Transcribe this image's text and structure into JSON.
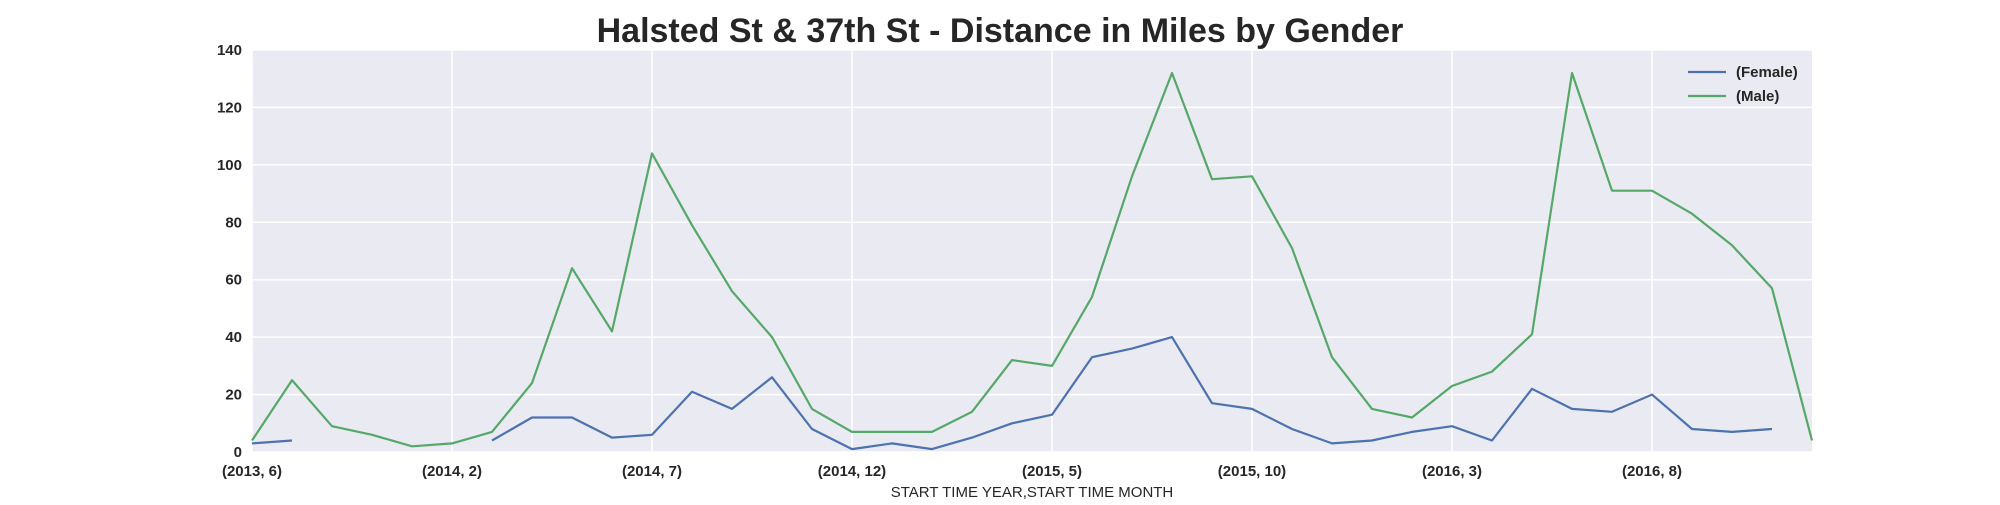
{
  "chart_data": {
    "type": "line",
    "title": "Halsted St & 37th St - Distance in Miles by Gender",
    "xlabel": "START TIME YEAR,START TIME MONTH",
    "ylabel": "",
    "ylim": [
      0,
      140
    ],
    "yticks": [
      0,
      20,
      40,
      60,
      80,
      100,
      120,
      140
    ],
    "xticks": [
      "(2013, 6)",
      "(2014, 2)",
      "(2014, 7)",
      "(2014, 12)",
      "(2015, 5)",
      "(2015, 10)",
      "(2016, 3)",
      "(2016, 8)"
    ],
    "xtick_indices": [
      0,
      5,
      10,
      15,
      20,
      25,
      30,
      35
    ],
    "grid": true,
    "legend": "top-right",
    "x": [
      "(2013, 6)",
      "(2013, 7)",
      "(2013, 8)",
      "(2013, 9)",
      "(2013, 10)",
      "(2014, 2)",
      "(2014, 3)",
      "(2014, 4)",
      "(2014, 5)",
      "(2014, 6)",
      "(2014, 7)",
      "(2014, 8)",
      "(2014, 9)",
      "(2014, 10)",
      "(2014, 11)",
      "(2014, 12)",
      "(2015, 1)",
      "(2015, 2)",
      "(2015, 3)",
      "(2015, 4)",
      "(2015, 5)",
      "(2015, 6)",
      "(2015, 7)",
      "(2015, 8)",
      "(2015, 9)",
      "(2015, 10)",
      "(2015, 11)",
      "(2015, 12)",
      "(2016, 1)",
      "(2016, 2)",
      "(2016, 3)",
      "(2016, 4)",
      "(2016, 5)",
      "(2016, 6)",
      "(2016, 7)",
      "(2016, 8)",
      "(2016, 9)",
      "(2016, 10)",
      "(2016, 11)",
      "(2016, 12)"
    ],
    "series": [
      {
        "name": "(Female)",
        "color": "#4c72b0",
        "values": [
          3,
          4,
          null,
          null,
          null,
          null,
          4,
          12,
          12,
          5,
          6,
          21,
          15,
          26,
          8,
          1,
          3,
          1,
          5,
          10,
          13,
          33,
          36,
          40,
          17,
          15,
          8,
          3,
          4,
          7,
          9,
          4,
          22,
          15,
          14,
          20,
          8,
          7,
          8,
          null
        ]
      },
      {
        "name": "(Male)",
        "color": "#55a868",
        "values": [
          4,
          25,
          9,
          6,
          2,
          3,
          7,
          24,
          64,
          42,
          104,
          79,
          56,
          40,
          15,
          7,
          7,
          7,
          14,
          32,
          30,
          54,
          96,
          132,
          95,
          96,
          71,
          33,
          15,
          12,
          23,
          28,
          41,
          132,
          91,
          91,
          83,
          72,
          57,
          4
        ]
      }
    ]
  }
}
